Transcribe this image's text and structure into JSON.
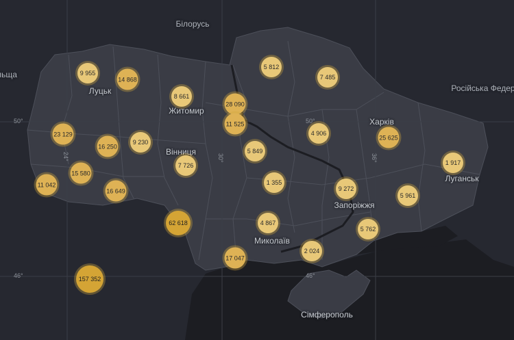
{
  "map": {
    "colors": {
      "background": "#262830",
      "land_other": "#2f3139",
      "land_ukraine": "#3a3c45",
      "region_border": "#4d505a",
      "water": "#1c1d22",
      "grid": "#3b3e47",
      "cluster_light": "#e8c878",
      "cluster_mid": "#deb255",
      "cluster_dark": "#d4a435",
      "cluster_ring": "rgba(210,165,60,0.35)"
    },
    "country_labels": [
      "Білорусь",
      "Російська Федер",
      "льща"
    ],
    "city_labels": [
      "Луцьк",
      "Житомир",
      "Вінниця",
      "Харків",
      "Луганськ",
      "Запоріжжя",
      "Миколаїв",
      "Сімферополь"
    ],
    "graticule_labels": [
      "50°",
      "50°",
      "46°",
      "46°",
      "24°",
      "30°",
      "36°"
    ],
    "clusters": [
      {
        "label": "9 955",
        "value": 9955
      },
      {
        "label": "14 868",
        "value": 14868
      },
      {
        "label": "8 661",
        "value": 8661
      },
      {
        "label": "28 090",
        "value": 28090
      },
      {
        "label": "11 525",
        "value": 11525
      },
      {
        "label": "5 812",
        "value": 5812
      },
      {
        "label": "7 485",
        "value": 7485
      },
      {
        "label": "23 129",
        "value": 23129
      },
      {
        "label": "16 250",
        "value": 16250
      },
      {
        "label": "9 230",
        "value": 9230
      },
      {
        "label": "7 726",
        "value": 7726
      },
      {
        "label": "5 849",
        "value": 5849
      },
      {
        "label": "4 906",
        "value": 4906
      },
      {
        "label": "25 625",
        "value": 25625
      },
      {
        "label": "1 917",
        "value": 1917
      },
      {
        "label": "15 580",
        "value": 15580
      },
      {
        "label": "11 042",
        "value": 11042
      },
      {
        "label": "16 649",
        "value": 16649
      },
      {
        "label": "1 355",
        "value": 1355
      },
      {
        "label": "9 272",
        "value": 9272
      },
      {
        "label": "5 961",
        "value": 5961
      },
      {
        "label": "62 618",
        "value": 62618
      },
      {
        "label": "4 867",
        "value": 4867
      },
      {
        "label": "5 762",
        "value": 5762
      },
      {
        "label": "2 024",
        "value": 2024
      },
      {
        "label": "17 047",
        "value": 17047
      },
      {
        "label": "157 352",
        "value": 157352
      }
    ]
  }
}
